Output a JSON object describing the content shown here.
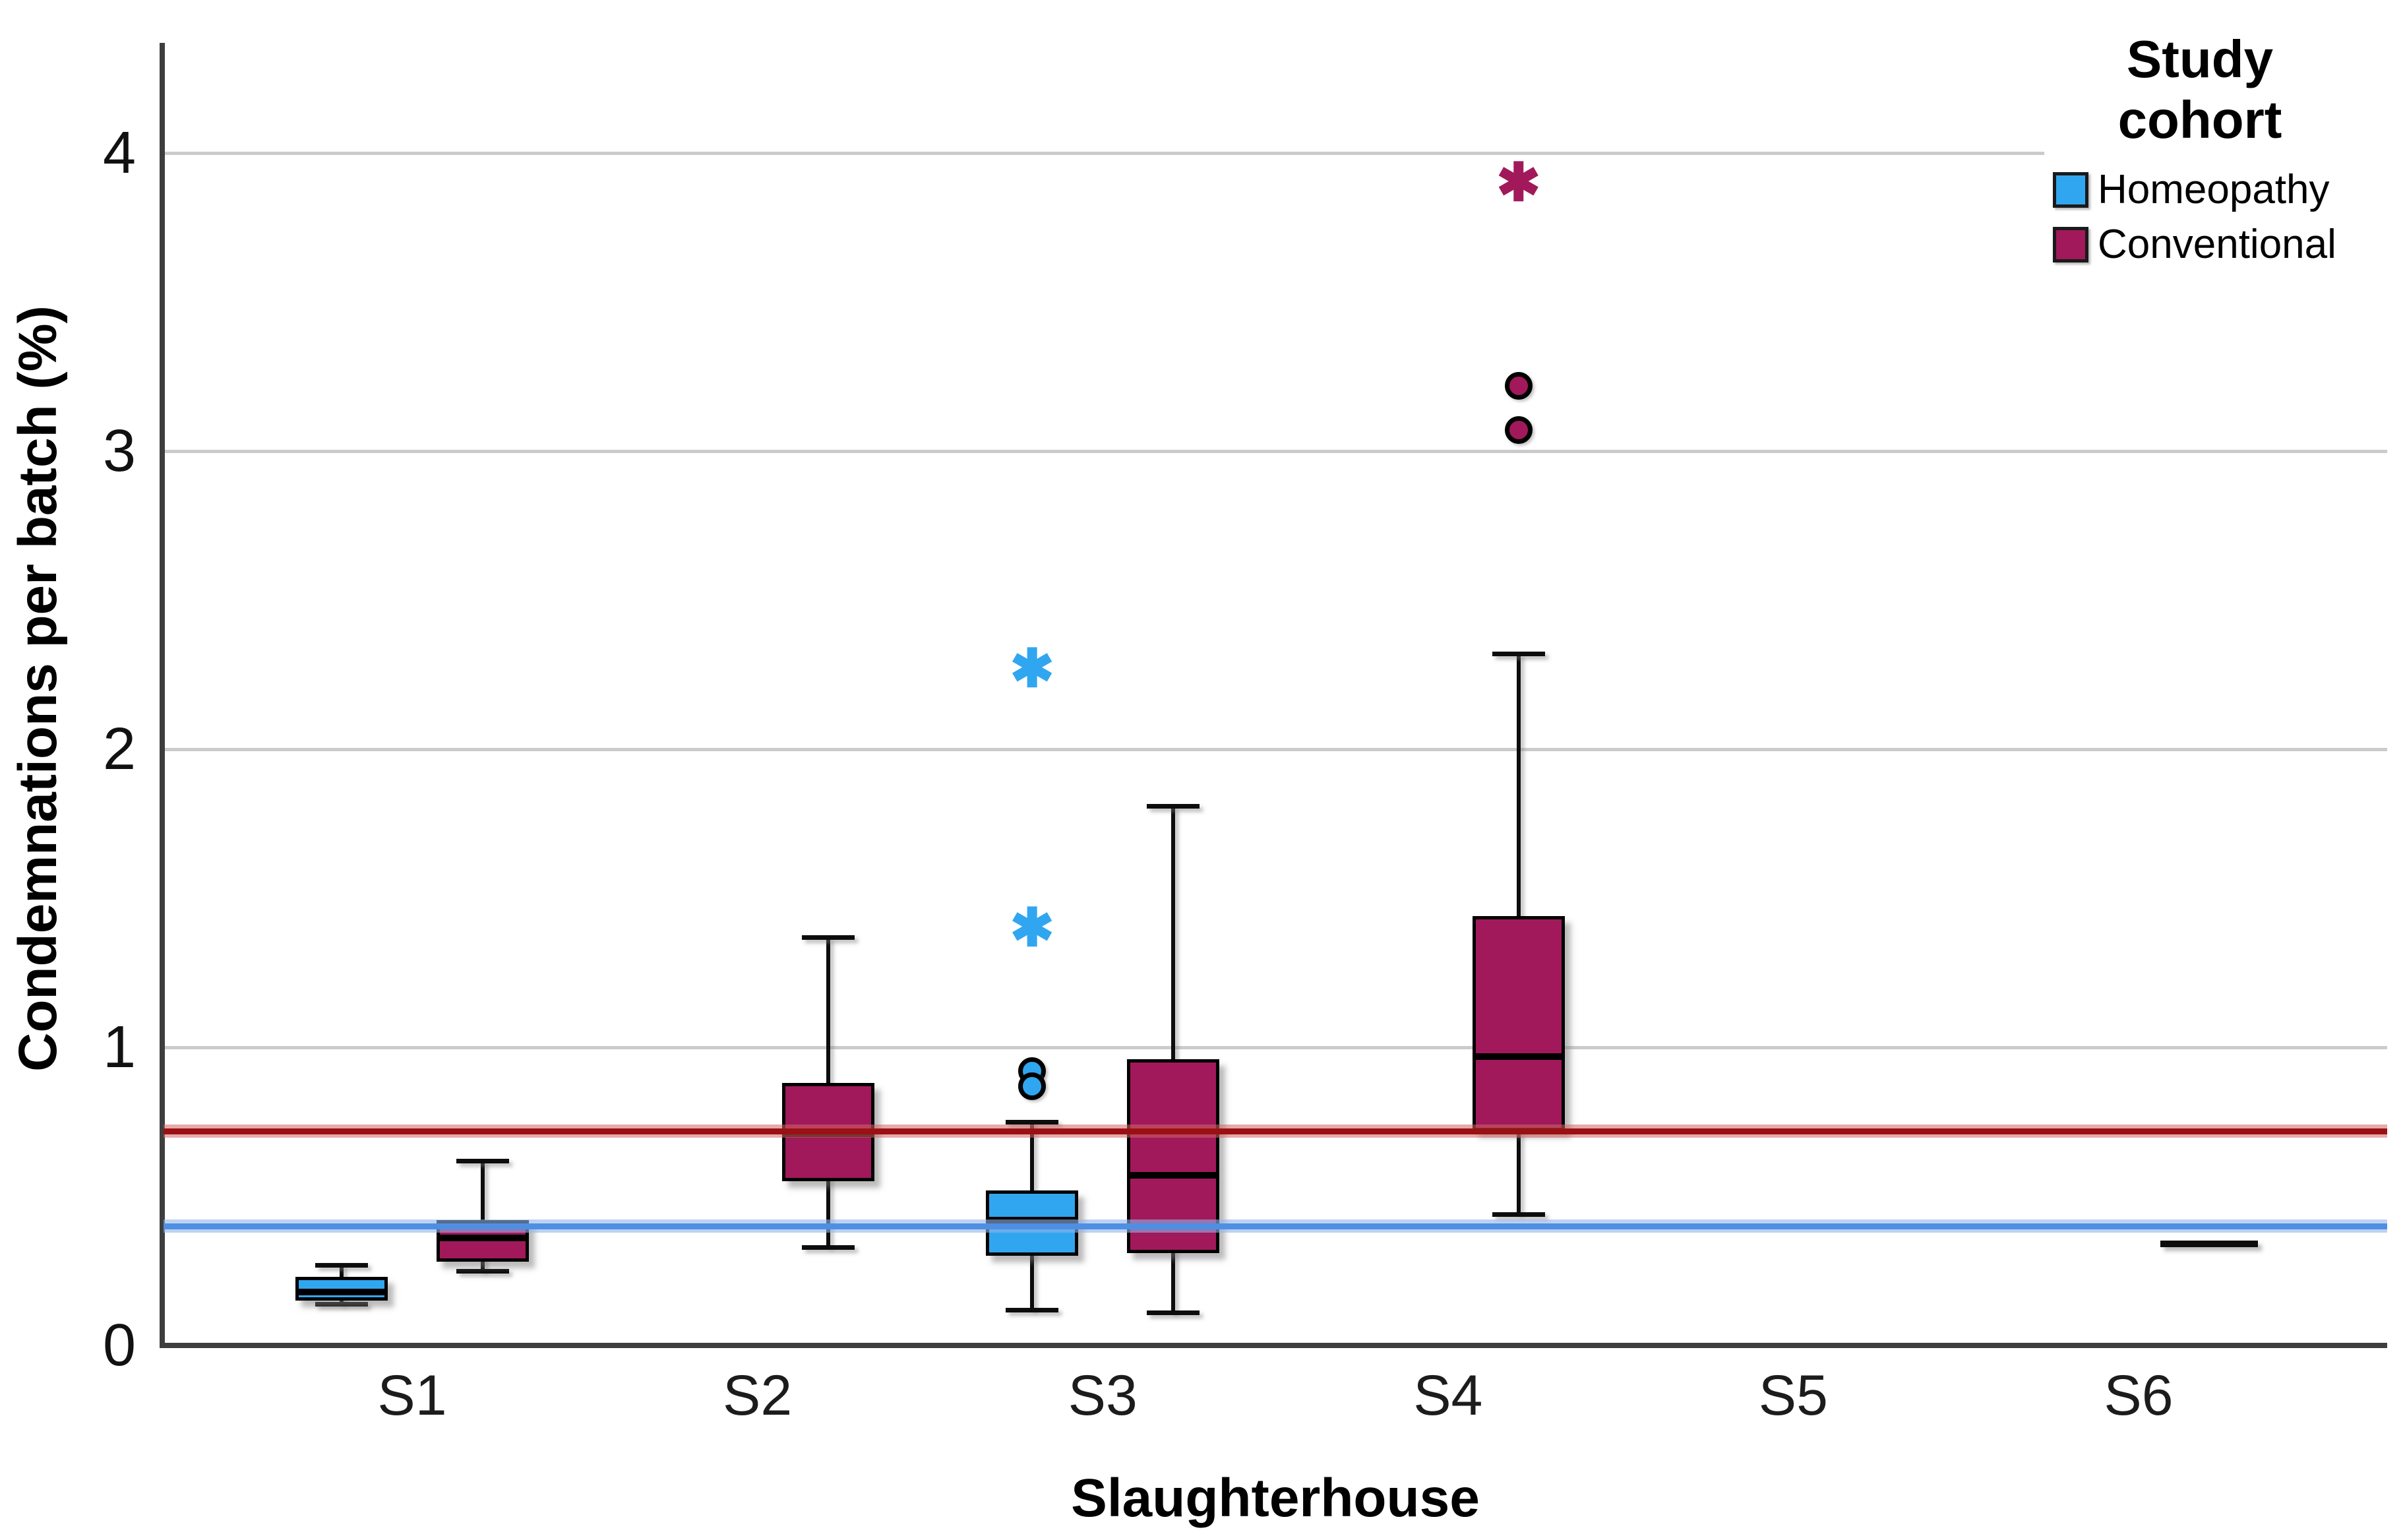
{
  "chart_data": {
    "type": "boxplot",
    "xlabel": "Slaughterhouse",
    "ylabel": "Condemnations per batch (%)",
    "categories": [
      "S1",
      "S2",
      "S3",
      "S4",
      "S5",
      "S6"
    ],
    "y_ticks": [
      "0",
      "1",
      "2",
      "3",
      "4"
    ],
    "ylim": [
      0,
      4.37
    ],
    "grid": "horizontal-gray",
    "legend": {
      "title": "Study\ncohort",
      "position": "top-right",
      "items": [
        {
          "label": "Homeopathy",
          "color": "#31A6F0"
        },
        {
          "label": "Conventional",
          "color": "#A1195B"
        }
      ]
    },
    "series": [
      {
        "name": "Homeopathy",
        "color": "#31A6F0",
        "boxes": [
          {
            "category": "S1",
            "min": 0.14,
            "q1": 0.15,
            "median": 0.18,
            "q3": 0.23,
            "max": 0.27
          },
          {
            "category": "S3",
            "min": 0.12,
            "q1": 0.3,
            "median": 0.42,
            "q3": 0.52,
            "max": 0.75,
            "outliers_circle": [
              0.92,
              0.87
            ],
            "outliers_star": [
              2.27,
              1.4
            ]
          }
        ]
      },
      {
        "name": "Conventional",
        "color": "#A1195B",
        "boxes": [
          {
            "category": "S1",
            "min": 0.25,
            "q1": 0.28,
            "median": 0.36,
            "q3": 0.42,
            "max": 0.62
          },
          {
            "category": "S2",
            "min": 0.33,
            "q1": 0.55,
            "median": 0.71,
            "q3": 0.88,
            "max": 1.37
          },
          {
            "category": "S3",
            "min": 0.11,
            "q1": 0.31,
            "median": 0.57,
            "q3": 0.96,
            "max": 1.81
          },
          {
            "category": "S4",
            "min": 0.44,
            "q1": 0.72,
            "median": 0.97,
            "q3": 1.44,
            "max": 2.32,
            "outliers_circle": [
              3.22,
              3.07
            ],
            "outliers_star": [
              3.9
            ]
          },
          {
            "category": "S6",
            "single_value": 0.34
          }
        ]
      }
    ],
    "reference_lines": [
      {
        "series": "Conventional",
        "value": 0.72,
        "core_color": "#9B1013",
        "halo_color": "rgba(210,100,100,0.55)"
      },
      {
        "series": "Homeopathy",
        "value": 0.4,
        "core_color": "#4F8FE3",
        "halo_color": "rgba(145,180,232,0.6)"
      }
    ],
    "markers": {
      "star_glyph": "✱"
    }
  }
}
